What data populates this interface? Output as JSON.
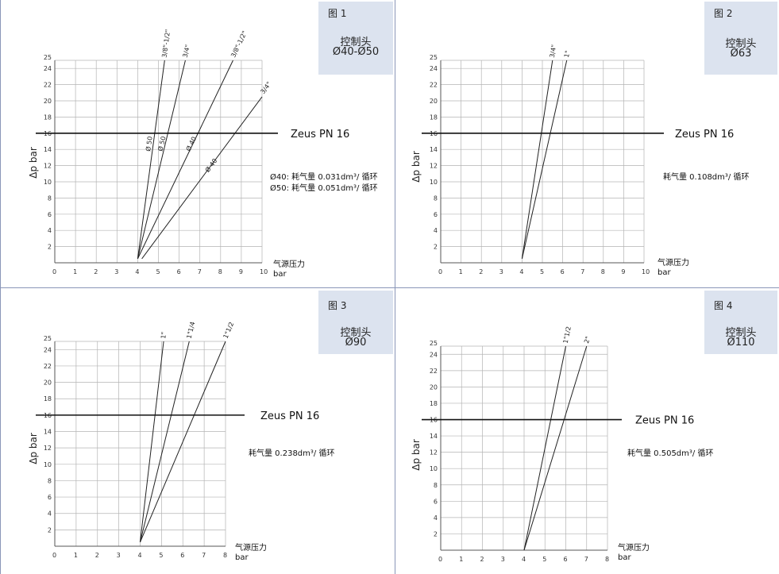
{
  "chart_data": [
    {
      "type": "line",
      "figure": "图 1",
      "header": "控制头",
      "model": "Ø40-Ø50",
      "ylabel": "Δp bar",
      "xlabel_cn": "气源压力",
      "xlabel_unit": "bar",
      "xlim": [
        0,
        10
      ],
      "ylim": [
        0,
        25
      ],
      "x_ticks": [
        "0",
        "1",
        "2",
        "3",
        "4",
        "5",
        "6",
        "7",
        "8",
        "9",
        "10"
      ],
      "y_ticks": [
        "2",
        "4",
        "6",
        "8",
        "10",
        "12",
        "14",
        "16",
        "18",
        "20",
        "22",
        "24",
        "25"
      ],
      "pn_label": "Zeus PN 16",
      "pn_value": 16,
      "consumption": [
        "Ø40: 耗气量 0.031dm³/ 循环",
        "Ø50: 耗气量 0.051dm³/ 循环"
      ],
      "series": [
        {
          "name": "3/8\"-1/2\"",
          "x": [
            4,
            5.3
          ],
          "y": [
            0.5,
            25
          ],
          "diam": "Ø 50"
        },
        {
          "name": "3/4\"",
          "x": [
            4,
            6.3
          ],
          "y": [
            0.5,
            25
          ],
          "diam": "Ø 50"
        },
        {
          "name": "3/8\"-1/2\"",
          "x": [
            4,
            8.6
          ],
          "y": [
            0.5,
            25
          ],
          "diam": "Ø 40"
        },
        {
          "name": "3/4\"",
          "x": [
            4.2,
            10
          ],
          "y": [
            0.5,
            20.5
          ],
          "diam": "Ø 40"
        }
      ]
    },
    {
      "type": "line",
      "figure": "图 2",
      "header": "控制头",
      "model": "Ø63",
      "ylabel": "Δp bar",
      "xlabel_cn": "气源压力",
      "xlabel_unit": "bar",
      "xlim": [
        0,
        10
      ],
      "ylim": [
        0,
        25
      ],
      "x_ticks": [
        "0",
        "1",
        "2",
        "3",
        "4",
        "5",
        "6",
        "7",
        "8",
        "9",
        "10"
      ],
      "y_ticks": [
        "2",
        "4",
        "6",
        "8",
        "10",
        "12",
        "14",
        "16",
        "18",
        "20",
        "22",
        "24",
        "25"
      ],
      "pn_label": "Zeus PN 16",
      "pn_value": 16,
      "consumption": [
        "耗气量 0.108dm³/ 循环"
      ],
      "series": [
        {
          "name": "3/4\"",
          "x": [
            4,
            5.5
          ],
          "y": [
            0.5,
            25
          ]
        },
        {
          "name": "1\"",
          "x": [
            4,
            6.2
          ],
          "y": [
            0.5,
            25
          ]
        }
      ]
    },
    {
      "type": "line",
      "figure": "图 3",
      "header": "控制头",
      "model": "Ø90",
      "ylabel": "Δp bar",
      "xlabel_cn": "气源压力",
      "xlabel_unit": "bar",
      "xlim": [
        0,
        8
      ],
      "ylim": [
        0,
        25
      ],
      "x_ticks": [
        "0",
        "1",
        "2",
        "3",
        "4",
        "5",
        "6",
        "7",
        "8"
      ],
      "y_ticks": [
        "2",
        "4",
        "6",
        "8",
        "10",
        "12",
        "14",
        "16",
        "18",
        "20",
        "22",
        "24",
        "25"
      ],
      "pn_label": "Zeus PN 16",
      "pn_value": 16,
      "consumption": [
        "耗气量 0.238dm³/ 循环"
      ],
      "series": [
        {
          "name": "1\"",
          "x": [
            4,
            5.1
          ],
          "y": [
            0.5,
            25
          ]
        },
        {
          "name": "1\"1/4",
          "x": [
            4,
            6.3
          ],
          "y": [
            0.5,
            25
          ]
        },
        {
          "name": "1\"1/2",
          "x": [
            4,
            8
          ],
          "y": [
            0.5,
            25
          ]
        }
      ]
    },
    {
      "type": "line",
      "figure": "图 4",
      "header": "控制头",
      "model": "Ø110",
      "ylabel": "Δp bar",
      "xlabel_cn": "气源压力",
      "xlabel_unit": "bar",
      "xlim": [
        0,
        8
      ],
      "ylim": [
        0,
        25
      ],
      "x_ticks": [
        "0",
        "1",
        "2",
        "3",
        "4",
        "5",
        "6",
        "7",
        "8"
      ],
      "y_ticks": [
        "2",
        "4",
        "6",
        "8",
        "10",
        "12",
        "14",
        "16",
        "18",
        "20",
        "22",
        "24",
        "25"
      ],
      "pn_label": "Zeus PN 16",
      "pn_value": 16,
      "consumption": [
        "耗气量 0.505dm³/ 循环"
      ],
      "series": [
        {
          "name": "1\"1/2",
          "x": [
            4,
            6
          ],
          "y": [
            0,
            25
          ]
        },
        {
          "name": "2\"",
          "x": [
            4,
            7
          ],
          "y": [
            0,
            25
          ]
        }
      ]
    }
  ]
}
